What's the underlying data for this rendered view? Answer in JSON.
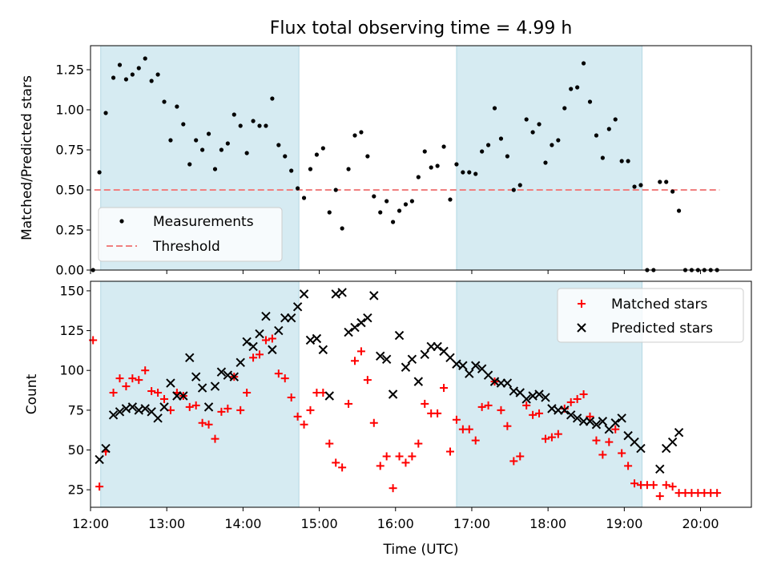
{
  "chart_data": [
    {
      "type": "scatter",
      "title": "Flux total observing time = 4.99 h",
      "xlabel": "",
      "ylabel": "Matched/Predicted stars",
      "xlim": [
        "12:00",
        "20:40"
      ],
      "ylim": [
        0,
        1.4
      ],
      "yticks": [
        "0.00",
        "0.25",
        "0.50",
        "0.75",
        "1.00",
        "1.25"
      ],
      "grid": false,
      "legend": "lower-left",
      "shaded_regions": [
        [
          "12:08",
          "14:44"
        ],
        [
          "16:48",
          "19:14"
        ]
      ],
      "threshold": {
        "name": "Threshold",
        "value": 0.5,
        "x_range": [
          "12:03",
          "20:15"
        ],
        "color": "#f08080"
      },
      "series": [
        {
          "name": "Measurements",
          "color": "#000000",
          "marker": "dot",
          "x": [
            "12:02",
            "12:07",
            "12:12",
            "12:18",
            "12:23",
            "12:28",
            "12:33",
            "12:38",
            "12:43",
            "12:48",
            "12:53",
            "12:58",
            "13:03",
            "13:08",
            "13:13",
            "13:18",
            "13:23",
            "13:28",
            "13:33",
            "13:38",
            "13:43",
            "13:48",
            "13:53",
            "13:58",
            "14:03",
            "14:08",
            "14:13",
            "14:18",
            "14:23",
            "14:28",
            "14:33",
            "14:38",
            "14:43",
            "14:48",
            "14:53",
            "14:58",
            "15:03",
            "15:08",
            "15:13",
            "15:18",
            "15:23",
            "15:28",
            "15:33",
            "15:38",
            "15:43",
            "15:48",
            "15:53",
            "15:58",
            "16:03",
            "16:08",
            "16:13",
            "16:18",
            "16:23",
            "16:28",
            "16:33",
            "16:38",
            "16:43",
            "16:48",
            "16:53",
            "16:58",
            "17:03",
            "17:08",
            "17:13",
            "17:18",
            "17:23",
            "17:28",
            "17:33",
            "17:38",
            "17:43",
            "17:48",
            "17:53",
            "17:58",
            "18:03",
            "18:08",
            "18:13",
            "18:18",
            "18:23",
            "18:28",
            "18:33",
            "18:38",
            "18:43",
            "18:48",
            "18:53",
            "18:58",
            "19:03",
            "19:08",
            "19:13",
            "19:18",
            "19:23",
            "19:28",
            "19:33",
            "19:38",
            "19:43",
            "19:48",
            "19:53",
            "19:58",
            "20:03",
            "20:08",
            "20:13"
          ],
          "y": [
            0.0,
            0.61,
            0.98,
            1.2,
            1.28,
            1.19,
            1.22,
            1.26,
            1.32,
            1.18,
            1.22,
            1.05,
            0.81,
            1.02,
            0.91,
            0.66,
            0.81,
            0.75,
            0.85,
            0.63,
            0.75,
            0.79,
            0.97,
            0.9,
            0.73,
            0.93,
            0.9,
            0.9,
            1.07,
            0.78,
            0.71,
            0.62,
            0.51,
            0.45,
            0.63,
            0.72,
            0.76,
            0.36,
            0.5,
            0.26,
            0.63,
            0.84,
            0.86,
            0.71,
            0.46,
            0.36,
            0.43,
            0.3,
            0.37,
            0.41,
            0.43,
            0.58,
            0.74,
            0.64,
            0.65,
            0.77,
            0.44,
            0.66,
            0.61,
            0.61,
            0.6,
            0.74,
            0.78,
            1.01,
            0.82,
            0.71,
            0.5,
            0.53,
            0.94,
            0.86,
            0.91,
            0.67,
            0.78,
            0.81,
            1.01,
            1.13,
            1.14,
            1.29,
            1.05,
            0.84,
            0.7,
            0.88,
            0.94,
            0.68,
            0.68,
            0.52,
            0.53,
            0.0,
            0.0,
            0.55,
            0.55,
            0.49,
            0.37,
            0.0,
            0.0,
            0.0,
            0.0,
            0.0,
            0.0
          ]
        }
      ]
    },
    {
      "type": "scatter",
      "title": "",
      "xlabel": "Time (UTC)",
      "ylabel": "Count",
      "xlim": [
        "12:00",
        "20:40"
      ],
      "ylim": [
        14,
        156
      ],
      "xticks": [
        "12:00",
        "13:00",
        "14:00",
        "15:00",
        "16:00",
        "17:00",
        "18:00",
        "19:00",
        "20:00"
      ],
      "yticks": [
        "25",
        "50",
        "75",
        "100",
        "125",
        "150"
      ],
      "grid": false,
      "legend": "upper-right",
      "shaded_regions": [
        [
          "12:08",
          "14:44"
        ],
        [
          "16:48",
          "19:14"
        ]
      ],
      "series": [
        {
          "name": "Matched stars",
          "color": "#ff0000",
          "marker": "plus",
          "x": [
            "12:02",
            "12:07",
            "12:12",
            "12:18",
            "12:23",
            "12:28",
            "12:33",
            "12:38",
            "12:43",
            "12:48",
            "12:53",
            "12:58",
            "13:03",
            "13:08",
            "13:13",
            "13:18",
            "13:23",
            "13:28",
            "13:33",
            "13:38",
            "13:43",
            "13:48",
            "13:53",
            "13:58",
            "14:03",
            "14:08",
            "14:13",
            "14:18",
            "14:23",
            "14:28",
            "14:33",
            "14:38",
            "14:43",
            "14:48",
            "14:53",
            "14:58",
            "15:03",
            "15:08",
            "15:13",
            "15:18",
            "15:23",
            "15:28",
            "15:33",
            "15:38",
            "15:43",
            "15:48",
            "15:53",
            "15:58",
            "16:03",
            "16:08",
            "16:13",
            "16:18",
            "16:23",
            "16:28",
            "16:33",
            "16:38",
            "16:43",
            "16:48",
            "16:53",
            "16:58",
            "17:03",
            "17:08",
            "17:13",
            "17:18",
            "17:23",
            "17:28",
            "17:33",
            "17:38",
            "17:43",
            "17:48",
            "17:53",
            "17:58",
            "18:03",
            "18:08",
            "18:13",
            "18:18",
            "18:23",
            "18:28",
            "18:33",
            "18:38",
            "18:43",
            "18:48",
            "18:53",
            "18:58",
            "19:03",
            "19:08",
            "19:13",
            "19:18",
            "19:23",
            "19:28",
            "19:33",
            "19:38",
            "19:43",
            "19:48",
            "19:53",
            "19:58",
            "20:03",
            "20:08",
            "20:13"
          ],
          "y": [
            119,
            27,
            49,
            86,
            95,
            90,
            95,
            94,
            100,
            87,
            86,
            82,
            75,
            86,
            84,
            77,
            78,
            67,
            66,
            57,
            74,
            76,
            96,
            75,
            86,
            108,
            110,
            119,
            120,
            98,
            95,
            83,
            71,
            66,
            75,
            86,
            86,
            54,
            42,
            39,
            79,
            106,
            112,
            94,
            67,
            40,
            46,
            26,
            46,
            42,
            46,
            54,
            79,
            73,
            73,
            89,
            49,
            69,
            63,
            63,
            56,
            77,
            78,
            93,
            75,
            65,
            43,
            46,
            78,
            72,
            73,
            57,
            58,
            60,
            76,
            80,
            82,
            85,
            71,
            56,
            47,
            55,
            63,
            48,
            40,
            29,
            28,
            28,
            28,
            21,
            28,
            27,
            23,
            23,
            23,
            23,
            23,
            23,
            23
          ]
        },
        {
          "name": "Predicted stars",
          "color": "#000000",
          "marker": "x",
          "x": [
            "12:07",
            "12:12",
            "12:18",
            "12:23",
            "12:28",
            "12:33",
            "12:38",
            "12:43",
            "12:48",
            "12:53",
            "12:58",
            "13:03",
            "13:08",
            "13:13",
            "13:18",
            "13:23",
            "13:28",
            "13:33",
            "13:38",
            "13:43",
            "13:48",
            "13:53",
            "13:58",
            "14:03",
            "14:08",
            "14:13",
            "14:18",
            "14:23",
            "14:28",
            "14:33",
            "14:38",
            "14:43",
            "14:48",
            "14:53",
            "14:58",
            "15:03",
            "15:08",
            "15:13",
            "15:18",
            "15:23",
            "15:28",
            "15:33",
            "15:38",
            "15:43",
            "15:48",
            "15:53",
            "15:58",
            "16:03",
            "16:08",
            "16:13",
            "16:18",
            "16:23",
            "16:28",
            "16:33",
            "16:38",
            "16:43",
            "16:48",
            "16:53",
            "16:58",
            "17:03",
            "17:08",
            "17:13",
            "17:18",
            "17:23",
            "17:28",
            "17:33",
            "17:38",
            "17:43",
            "17:48",
            "17:53",
            "17:58",
            "18:03",
            "18:08",
            "18:13",
            "18:18",
            "18:23",
            "18:28",
            "18:33",
            "18:38",
            "18:43",
            "18:48",
            "18:53",
            "18:58",
            "19:03",
            "19:08",
            "19:13",
            "19:28",
            "19:33",
            "19:38",
            "19:43"
          ],
          "y": [
            44,
            51,
            72,
            74,
            76,
            77,
            75,
            76,
            74,
            70,
            77,
            92,
            84,
            84,
            108,
            96,
            89,
            77,
            90,
            99,
            97,
            96,
            105,
            118,
            115,
            123,
            134,
            113,
            125,
            133,
            133,
            140,
            148,
            119,
            120,
            113,
            84,
            148,
            149,
            124,
            127,
            130,
            133,
            147,
            109,
            107,
            85,
            122,
            102,
            107,
            93,
            110,
            115,
            115,
            112,
            108,
            104,
            103,
            98,
            103,
            101,
            97,
            93,
            92,
            92,
            87,
            86,
            82,
            84,
            85,
            83,
            76,
            75,
            75,
            72,
            70,
            68,
            68,
            66,
            68,
            63,
            67,
            70,
            59,
            55,
            51,
            38,
            51,
            55,
            61
          ]
        }
      ]
    }
  ]
}
